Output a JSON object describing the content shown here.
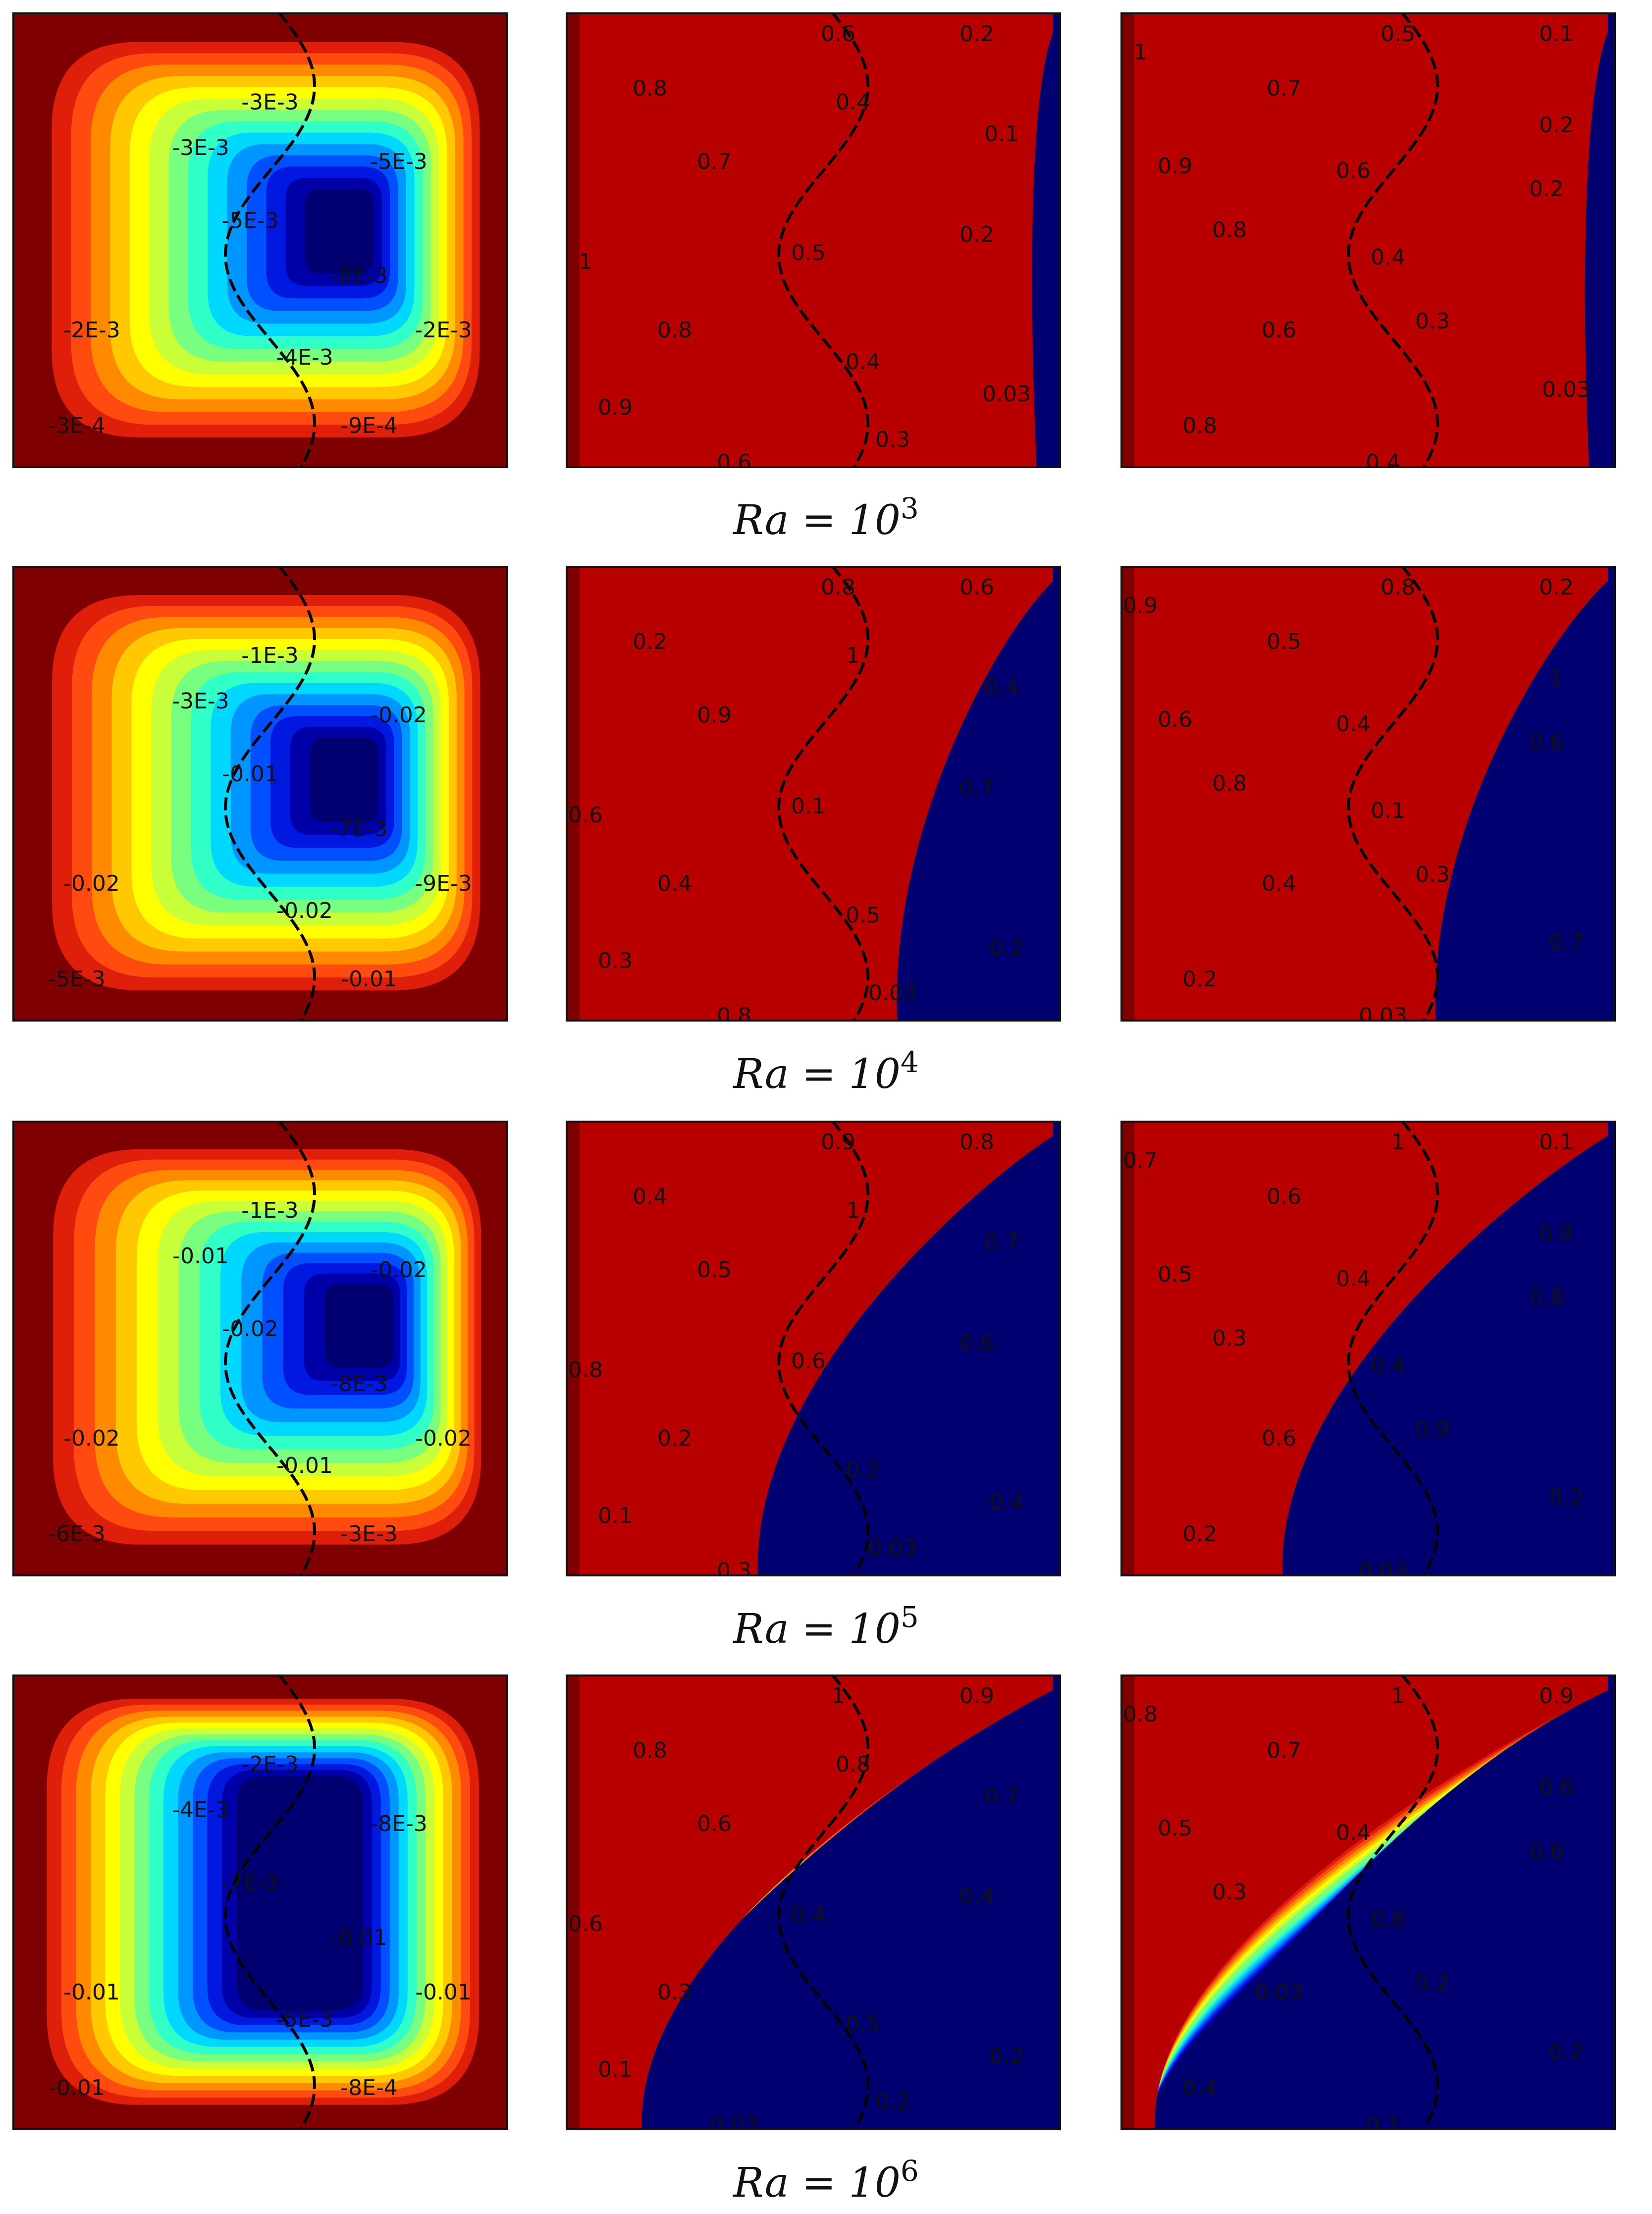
{
  "colors": {
    "jet": [
      "#7f0000",
      "#b80000",
      "#e01f0a",
      "#ff4a10",
      "#ff8a00",
      "#ffc800",
      "#ffff00",
      "#c8ff38",
      "#78ff80",
      "#30ffc8",
      "#00d8ff",
      "#0096ff",
      "#0050ff",
      "#0018e0",
      "#0000a8",
      "#000070"
    ],
    "frame": "#111111",
    "interface_line": "#000000"
  },
  "rows": [
    {
      "caption": {
        "base": "Ra = 10",
        "exponent": "3"
      },
      "panels": [
        {
          "kind": "streamfunction",
          "labels": [
            "-3E-3",
            "-3E-3",
            "-5E-3",
            "-5E-3",
            "-8E-3",
            "-2E-3",
            "-2E-3",
            "-4E-3",
            "-3E-4",
            "-9E-4"
          ]
        },
        {
          "kind": "temperature-1",
          "labels": [
            "0.6",
            "0.2",
            "0.8",
            "0.4",
            "0.1",
            "0.7",
            "1",
            "0.5",
            "0.2",
            "0.8",
            "0.4",
            "0.03",
            "0.9",
            "0.3",
            "0.6"
          ]
        },
        {
          "kind": "temperature-2",
          "labels": [
            "0.5",
            "0.1",
            "1",
            "0.7",
            "0.2",
            "0.9",
            "0.6",
            "0.2",
            "0.8",
            "0.4",
            "0.3",
            "0.6",
            "0.03",
            "0.8",
            "0.4"
          ]
        }
      ]
    },
    {
      "caption": {
        "base": "Ra = 10",
        "exponent": "4"
      },
      "panels": [
        {
          "kind": "streamfunction",
          "labels": [
            "-1E-3",
            "-3E-3",
            "-0.02",
            "-0.01",
            "-7E-3",
            "-0.02",
            "-9E-3",
            "-0.02",
            "-5E-3",
            "-0.01"
          ]
        },
        {
          "kind": "temperature-1",
          "labels": [
            "0.8",
            "0.6",
            "0.2",
            "1",
            "0.4",
            "0.9",
            "0.6",
            "0.1",
            "0.7",
            "0.4",
            "0.5",
            "0.2",
            "0.3",
            "0.03",
            "0.8"
          ]
        },
        {
          "kind": "temperature-2",
          "labels": [
            "0.8",
            "0.2",
            "0.9",
            "0.5",
            "1",
            "0.6",
            "0.4",
            "0.6",
            "0.8",
            "0.1",
            "0.3",
            "0.4",
            "0.7",
            "0.2",
            "0.03"
          ]
        }
      ]
    },
    {
      "caption": {
        "base": "Ra = 10",
        "exponent": "5"
      },
      "panels": [
        {
          "kind": "streamfunction",
          "labels": [
            "-1E-3",
            "-0.01",
            "-0.02",
            "-0.02",
            "-8E-3",
            "-0.02",
            "-0.02",
            "-0.01",
            "-6E-3",
            "-3E-3"
          ]
        },
        {
          "kind": "temperature-1",
          "labels": [
            "0.9",
            "0.8",
            "0.4",
            "1",
            "0.7",
            "0.5",
            "0.8",
            "0.6",
            "0.6",
            "0.2",
            "0.2",
            "0.4",
            "0.1",
            "0.03",
            "0.3"
          ]
        },
        {
          "kind": "temperature-2",
          "labels": [
            "1",
            "0.1",
            "0.7",
            "0.6",
            "0.8",
            "0.5",
            "0.4",
            "0.8",
            "0.3",
            "0.4",
            "0.9",
            "0.6",
            "0.2",
            "0.2",
            "0.03"
          ]
        }
      ]
    },
    {
      "caption": {
        "base": "Ra = 10",
        "exponent": "6"
      },
      "panels": [
        {
          "kind": "streamfunction",
          "labels": [
            "-2E-3",
            "-4E-3",
            "-8E-3",
            "-7E-3",
            "-0.01",
            "-0.01",
            "-0.01",
            "-5E-3",
            "-0.01",
            "-8E-4"
          ]
        },
        {
          "kind": "temperature-1",
          "labels": [
            "1",
            "0.9",
            "0.8",
            "0.8",
            "0.7",
            "0.6",
            "0.6",
            "0.4",
            "0.4",
            "0.3",
            "0.5",
            "0.2",
            "0.1",
            "0.2",
            "0.03"
          ]
        },
        {
          "kind": "temperature-2",
          "labels": [
            "1",
            "0.9",
            "0.8",
            "0.7",
            "0.6",
            "0.5",
            "0.4",
            "0.6",
            "0.3",
            "0.8",
            "0.2",
            "0.03",
            "0.2",
            "0.4",
            "0.1"
          ]
        }
      ]
    }
  ]
}
